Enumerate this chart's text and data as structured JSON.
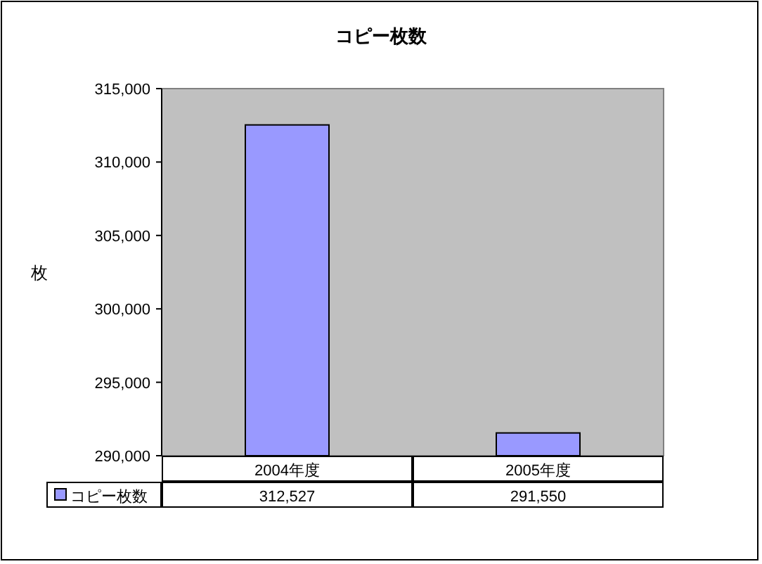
{
  "chart_data": {
    "type": "bar",
    "title": "コピー枚数",
    "ylabel": "枚",
    "categories": [
      "2004年度",
      "2005年度"
    ],
    "series": [
      {
        "name": "コピー枚数",
        "color": "#9999ff",
        "values": [
          312527,
          291550
        ],
        "value_labels": [
          "312,527",
          "291,550"
        ]
      }
    ],
    "ylim": [
      290000,
      315000
    ],
    "yticks": [
      {
        "value": 290000,
        "label": "290,000"
      },
      {
        "value": 295000,
        "label": "295,000"
      },
      {
        "value": 300000,
        "label": "300,000"
      },
      {
        "value": 305000,
        "label": "305,000"
      },
      {
        "value": 310000,
        "label": "310,000"
      },
      {
        "value": 315000,
        "label": "315,000"
      }
    ],
    "legend": "bottom left"
  }
}
